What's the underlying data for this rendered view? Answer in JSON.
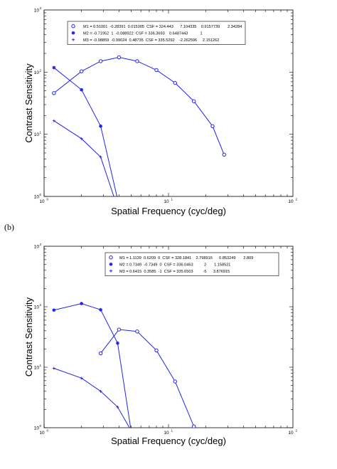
{
  "figure": {
    "panel_b_label": "(b)"
  },
  "chart_data": [
    {
      "type": "line",
      "xscale": "log",
      "yscale": "log",
      "xlim": [
        1,
        100
      ],
      "ylim": [
        1,
        1000
      ],
      "xlabel": "Spatial Frequency (cyc/deg)",
      "ylabel": "Contrast Sensitivity",
      "x_ticks": [
        {
          "value": 1,
          "base": "10",
          "exp": "0"
        },
        {
          "value": 10,
          "base": "10",
          "exp": "1"
        },
        {
          "value": 100,
          "base": "10",
          "exp": "2"
        }
      ],
      "y_ticks": [
        {
          "value": 1,
          "base": "10",
          "exp": "0"
        },
        {
          "value": 10,
          "base": "10",
          "exp": "1"
        },
        {
          "value": 100,
          "base": "10",
          "exp": "2"
        },
        {
          "value": 1000,
          "base": "10",
          "exp": "3"
        }
      ],
      "grid": false,
      "legend_position": "top",
      "color": "#2323e6",
      "series": [
        {
          "name": "M1 = 0.51001  -0.28391  0.015305  CSF = 324.443      7.104335    0.9157739       2.34284",
          "marker": "circle",
          "x": [
            1.2,
            2.0,
            2.85,
            4.0,
            5.6,
            8.0,
            11.3,
            16.0,
            22.6,
            28.0
          ],
          "y": [
            46,
            103,
            150,
            173,
            150,
            108,
            67,
            34,
            13.5,
            4.7
          ]
        },
        {
          "name": "M2 = -0.71952  1  -0.088922  CSF = 336.3693    0.6487443           1",
          "marker": "star",
          "x": [
            1.2,
            2.0,
            2.85,
            3.9
          ],
          "y": [
            118,
            52,
            13.5,
            0.9
          ]
        },
        {
          "name": "M3 = -0.98859  -0.99024  0.48735  CSF = 335.5292    -2.262596     2.151262",
          "marker": "plus",
          "x": [
            1.2,
            2.0,
            2.85,
            3.7
          ],
          "y": [
            16.5,
            8.5,
            4.3,
            0.9
          ]
        }
      ]
    },
    {
      "type": "line",
      "xscale": "log",
      "yscale": "log",
      "xlim": [
        1,
        100
      ],
      "ylim": [
        1,
        1000
      ],
      "xlabel": "Spatial Frequency (cyc/deg)",
      "ylabel": "Contrast Sensitivity",
      "x_ticks": [
        {
          "value": 1,
          "base": "10",
          "exp": "0"
        },
        {
          "value": 10,
          "base": "10",
          "exp": "1"
        },
        {
          "value": 100,
          "base": "10",
          "exp": "2"
        }
      ],
      "y_ticks": [
        {
          "value": 1,
          "base": "10",
          "exp": "0"
        },
        {
          "value": 10,
          "base": "10",
          "exp": "1"
        },
        {
          "value": 100,
          "base": "10",
          "exp": "2"
        },
        {
          "value": 1000,
          "base": "10",
          "exp": "3"
        }
      ],
      "grid": false,
      "legend_position": "top-right",
      "color": "#2323e6",
      "series": [
        {
          "name": "M1 = 1.1139  0.6209  0  CSF = 328.1841    2.798916      0.853249       2.809",
          "marker": "circle",
          "x": [
            2.85,
            4.0,
            5.6,
            8.0,
            11.3,
            16.0
          ],
          "y": [
            17,
            42,
            39,
            19,
            5.8,
            1.05
          ]
        },
        {
          "name": "M2 = 0.7349  -0.7349  0  CSF = 336.0463          2       1.158521",
          "marker": "star",
          "x": [
            1.2,
            2.0,
            2.85,
            3.9,
            5.0
          ],
          "y": [
            88,
            113,
            89,
            25,
            0.9
          ]
        },
        {
          "name": "M3 = 0.6415  0.3585  -1  CSF = 335.6503         -5      3.876915",
          "marker": "plus",
          "x": [
            1.2,
            2.0,
            2.85,
            3.9,
            5.0
          ],
          "y": [
            9.6,
            6.6,
            4.0,
            2.2,
            0.9
          ]
        }
      ]
    }
  ]
}
